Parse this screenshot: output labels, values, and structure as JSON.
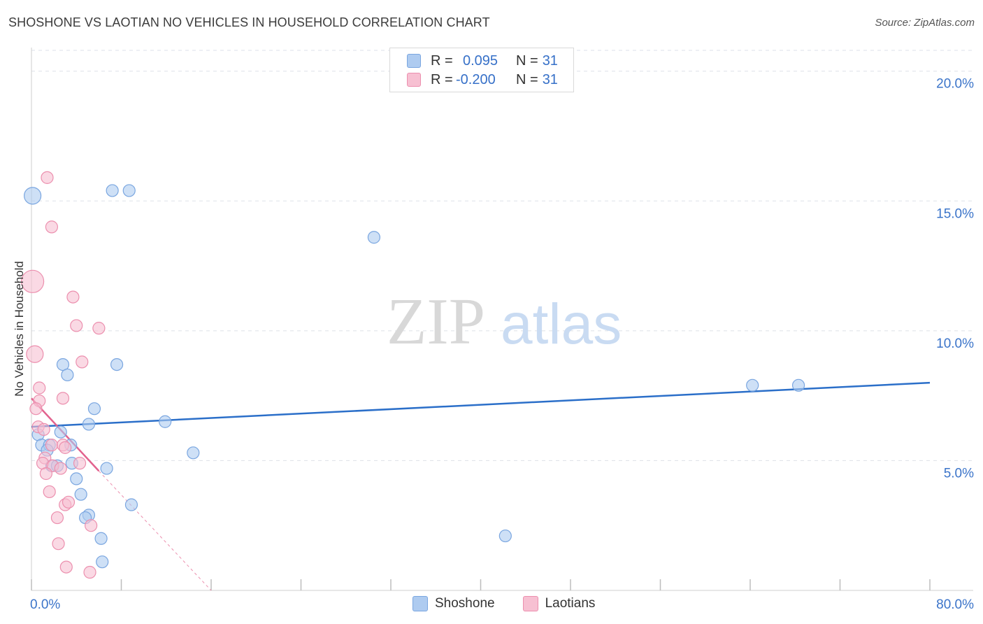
{
  "title": "SHOSHONE VS LAOTIAN NO VEHICLES IN HOUSEHOLD CORRELATION CHART",
  "source": "Source: ZipAtlas.com",
  "watermark": {
    "zip": "ZIP",
    "atlas": "atlas"
  },
  "colors": {
    "shoshone_fill": "#aecbf0",
    "shoshone_stroke": "#7aa6e0",
    "shoshone_line": "#2b6fc9",
    "laotian_fill": "#f7c0d2",
    "laotian_stroke": "#ec8fae",
    "laotian_line": "#e2628e",
    "tick_label": "#3b74c9",
    "grid": "#dde1e8"
  },
  "legend": {
    "rows": [
      {
        "r_label": "R =",
        "r_value": "0.095",
        "n_label": "N =",
        "n_value": "31"
      },
      {
        "r_label": "R =",
        "r_value": "-0.200",
        "n_label": "N =",
        "n_value": "31"
      }
    ],
    "bottom": [
      "Shoshone",
      "Laotians"
    ]
  },
  "chart_data": {
    "type": "scatter",
    "xlabel": "",
    "ylabel": "No Vehicles in Household",
    "xlim": [
      0,
      80
    ],
    "ylim": [
      0,
      20.8
    ],
    "x_tick_labels": [
      "0.0%",
      "80.0%"
    ],
    "y_ticks": [
      5,
      10,
      15,
      20
    ],
    "y_tick_labels": [
      "5.0%",
      "10.0%",
      "15.0%",
      "20.0%"
    ],
    "grid": "horizontal dashed",
    "series": [
      {
        "name": "Shoshone",
        "r": 0.095,
        "n": 31,
        "points": [
          [
            0.1,
            15.2
          ],
          [
            7.2,
            15.4
          ],
          [
            8.7,
            15.4
          ],
          [
            30.5,
            13.6
          ],
          [
            2.8,
            8.7
          ],
          [
            3.2,
            8.3
          ],
          [
            7.6,
            8.7
          ],
          [
            5.6,
            7.0
          ],
          [
            5.1,
            6.4
          ],
          [
            11.9,
            6.5
          ],
          [
            0.6,
            6.0
          ],
          [
            2.6,
            6.1
          ],
          [
            0.9,
            5.6
          ],
          [
            1.6,
            5.6
          ],
          [
            1.4,
            5.4
          ],
          [
            3.5,
            5.6
          ],
          [
            14.4,
            5.3
          ],
          [
            1.8,
            4.8
          ],
          [
            3.6,
            4.9
          ],
          [
            2.3,
            4.8
          ],
          [
            6.7,
            4.7
          ],
          [
            4.0,
            4.3
          ],
          [
            4.4,
            3.7
          ],
          [
            8.9,
            3.3
          ],
          [
            5.1,
            2.9
          ],
          [
            4.8,
            2.8
          ],
          [
            6.2,
            2.0
          ],
          [
            42.2,
            2.1
          ],
          [
            6.3,
            1.1
          ],
          [
            64.2,
            7.9
          ],
          [
            68.3,
            7.9
          ]
        ],
        "trend": [
          [
            0,
            6.3
          ],
          [
            80,
            8.0
          ]
        ]
      },
      {
        "name": "Laotians",
        "r": -0.2,
        "n": 31,
        "points": [
          [
            1.4,
            15.9
          ],
          [
            1.8,
            14.0
          ],
          [
            0.1,
            11.9
          ],
          [
            3.7,
            11.3
          ],
          [
            4.0,
            10.2
          ],
          [
            6.0,
            10.1
          ],
          [
            0.3,
            9.1
          ],
          [
            4.5,
            8.8
          ],
          [
            0.7,
            7.8
          ],
          [
            2.8,
            7.4
          ],
          [
            0.7,
            7.3
          ],
          [
            0.4,
            7.0
          ],
          [
            0.6,
            6.3
          ],
          [
            1.1,
            6.2
          ],
          [
            1.8,
            5.6
          ],
          [
            2.8,
            5.6
          ],
          [
            3.0,
            5.5
          ],
          [
            1.2,
            5.1
          ],
          [
            1.0,
            4.9
          ],
          [
            4.3,
            4.9
          ],
          [
            1.9,
            4.8
          ],
          [
            2.6,
            4.7
          ],
          [
            1.3,
            4.5
          ],
          [
            1.6,
            3.8
          ],
          [
            3.0,
            3.3
          ],
          [
            3.3,
            3.4
          ],
          [
            2.3,
            2.8
          ],
          [
            5.3,
            2.5
          ],
          [
            2.4,
            1.8
          ],
          [
            3.1,
            0.9
          ],
          [
            5.2,
            0.7
          ]
        ],
        "trend": [
          [
            0,
            7.4
          ],
          [
            6.0,
            4.6
          ]
        ],
        "trend_extension": [
          [
            6.0,
            4.6
          ],
          [
            16.0,
            0.0
          ]
        ]
      }
    ]
  }
}
